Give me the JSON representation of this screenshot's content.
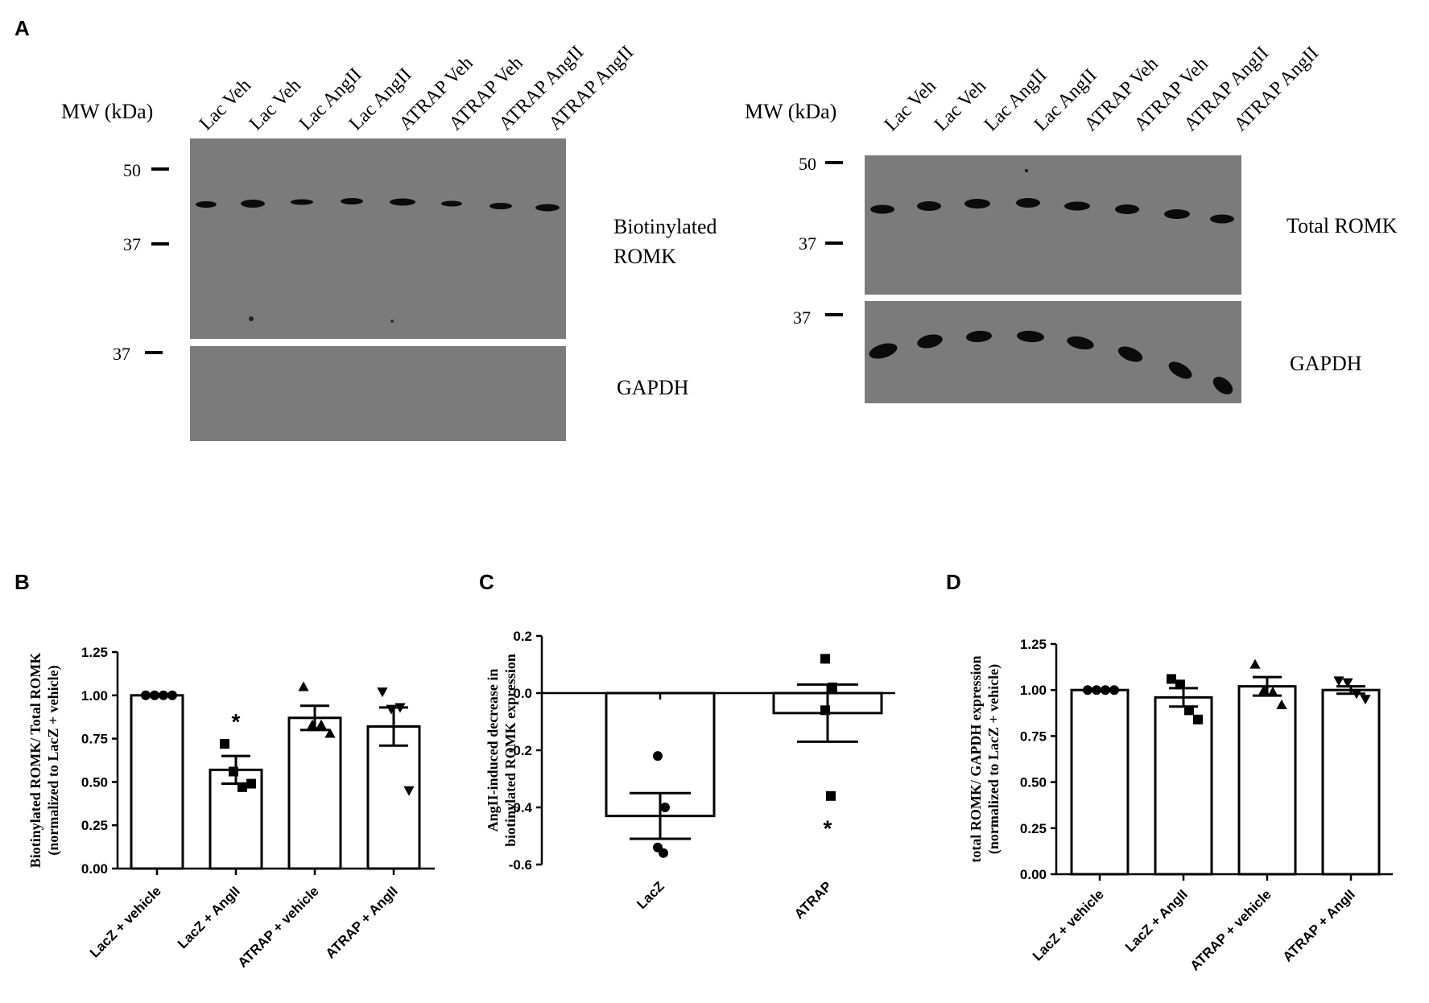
{
  "panels": {
    "a": {
      "letter": "A"
    },
    "b": {
      "letter": "B"
    },
    "c": {
      "letter": "C"
    },
    "d": {
      "letter": "D"
    }
  },
  "blot_left": {
    "mw_label": "MW (kDa)",
    "lanes": [
      "Lac Veh",
      "Lac Veh",
      "Lac AngII",
      "Lac AngII",
      "ATRAP Veh",
      "ATRAP Veh",
      "ATRAP AngII",
      "ATRAP AngII"
    ],
    "markers": [
      "50",
      "37",
      "37"
    ],
    "label_top_line1": "Biotinylated",
    "label_top_line2": "ROMK",
    "label_bottom": "GAPDH"
  },
  "blot_right": {
    "mw_label": "MW (kDa)",
    "lanes": [
      "Lac Veh",
      "Lac Veh",
      "Lac AngII",
      "Lac AngII",
      "ATRAP Veh",
      "ATRAP Veh",
      "ATRAP AngII",
      "ATRAP AngII"
    ],
    "markers": [
      "50",
      "37",
      "37"
    ],
    "label_top": "Total ROMK",
    "label_bottom": "GAPDH"
  },
  "colors": {
    "blot_bg": "#7b7b7b",
    "band": "#0b0b0b",
    "ink": "#000000"
  },
  "chart_data": [
    {
      "type": "bar",
      "panel": "B",
      "categories": [
        "LacZ + vehicle",
        "LacZ + AngII",
        "ATRAP + vehicle",
        "ATRAP + AngII"
      ],
      "values": [
        1.0,
        0.57,
        0.87,
        0.82
      ],
      "sem": [
        0.0,
        0.08,
        0.07,
        0.11
      ],
      "points": [
        [
          1.0,
          1.0,
          1.0,
          1.0
        ],
        [
          0.72,
          0.56,
          0.47,
          0.49
        ],
        [
          1.05,
          0.83,
          0.83,
          0.78
        ],
        [
          1.02,
          0.92,
          0.93,
          0.45
        ]
      ],
      "markers": [
        "circle",
        "square",
        "triangle-up",
        "triangle-down"
      ],
      "annotations": [
        {
          "category": 1,
          "text": "*",
          "y": 0.87
        }
      ],
      "ylabel_line1": "Biotinylated ROMK/ Total ROMK",
      "ylabel_line2": "(normalized to LacZ + vehicle)",
      "xlabel": "",
      "ylim": [
        0,
        1.25
      ],
      "yticks": [
        "0.00",
        "0.25",
        "0.50",
        "0.75",
        "1.00",
        "1.25"
      ]
    },
    {
      "type": "bar",
      "panel": "C",
      "categories": [
        "LacZ",
        "ATRAP"
      ],
      "values": [
        -0.43,
        -0.07
      ],
      "sem": [
        0.08,
        0.1
      ],
      "points": [
        [
          -0.22,
          -0.4,
          -0.54,
          -0.56
        ],
        [
          0.12,
          0.02,
          -0.06,
          -0.36
        ]
      ],
      "markers": [
        "circle",
        "square"
      ],
      "annotations": [
        {
          "category": 1,
          "text": "*",
          "y": -0.46
        }
      ],
      "ylabel_line1": "AngII-induced decrease in",
      "ylabel_line2": "biotinylated ROMK expression",
      "xlabel": "",
      "ylim": [
        -0.6,
        0.2
      ],
      "yticks": [
        "-0.6",
        "-0.4",
        "-0.2",
        "0.0",
        "0.2"
      ]
    },
    {
      "type": "bar",
      "panel": "D",
      "categories": [
        "LacZ + vehicle",
        "LacZ + AngII",
        "ATRAP + vehicle",
        "ATRAP + AngII"
      ],
      "values": [
        1.0,
        0.96,
        1.02,
        1.0
      ],
      "sem": [
        0.0,
        0.05,
        0.05,
        0.02
      ],
      "points": [
        [
          1.0,
          1.0,
          1.0,
          1.0
        ],
        [
          1.06,
          1.03,
          0.89,
          0.84
        ],
        [
          1.14,
          1.0,
          0.99,
          0.92
        ],
        [
          1.05,
          1.04,
          0.98,
          0.95
        ]
      ],
      "markers": [
        "circle",
        "square",
        "triangle-up",
        "triangle-down"
      ],
      "annotations": [],
      "ylabel_line1": "total ROMK/ GAPDH expression",
      "ylabel_line2": "(normalized to LacZ + vehicle)",
      "xlabel": "",
      "ylim": [
        0,
        1.25
      ],
      "yticks": [
        "0.00",
        "0.25",
        "0.50",
        "0.75",
        "1.00",
        "1.25"
      ]
    }
  ]
}
